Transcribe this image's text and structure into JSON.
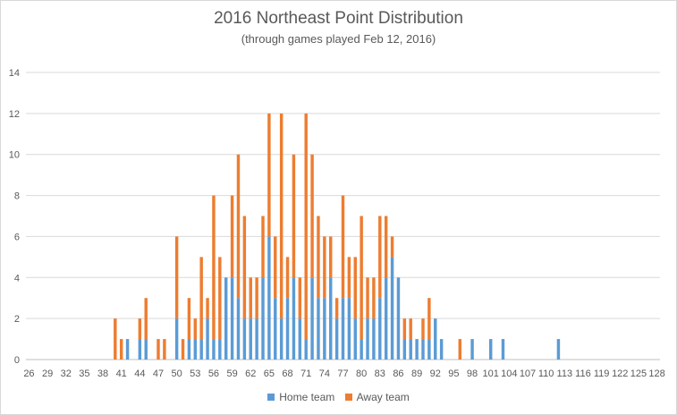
{
  "chart_data": {
    "type": "bar",
    "stacked": true,
    "title": "2016 Northeast Point Distribution",
    "subtitle": "(through games played Feb 12, 2016)",
    "xlabel": "",
    "ylabel": "",
    "ylim": [
      0,
      14
    ],
    "yticks": [
      0,
      2,
      4,
      6,
      8,
      10,
      12,
      14
    ],
    "x": [
      26,
      27,
      28,
      29,
      30,
      31,
      32,
      33,
      34,
      35,
      36,
      37,
      38,
      39,
      40,
      41,
      42,
      43,
      44,
      45,
      46,
      47,
      48,
      49,
      50,
      51,
      52,
      53,
      54,
      55,
      56,
      57,
      58,
      59,
      60,
      61,
      62,
      63,
      64,
      65,
      66,
      67,
      68,
      69,
      70,
      71,
      72,
      73,
      74,
      75,
      76,
      77,
      78,
      79,
      80,
      81,
      82,
      83,
      84,
      85,
      86,
      87,
      88,
      89,
      90,
      91,
      92,
      93,
      94,
      95,
      96,
      97,
      98,
      99,
      100,
      101,
      102,
      103,
      104,
      105,
      106,
      107,
      108,
      109,
      110,
      111,
      112,
      113,
      114,
      115,
      116,
      117,
      118,
      119,
      120,
      121,
      122,
      123,
      124,
      125,
      126,
      127,
      128
    ],
    "xticks": [
      26,
      29,
      32,
      35,
      38,
      41,
      44,
      47,
      50,
      53,
      56,
      59,
      62,
      65,
      68,
      71,
      74,
      77,
      80,
      83,
      86,
      89,
      92,
      95,
      98,
      101,
      104,
      107,
      110,
      113,
      116,
      119,
      122,
      125,
      128
    ],
    "grid": true,
    "legend_position": "bottom",
    "series": [
      {
        "name": "Home team",
        "color": "#5b9bd5",
        "values": [
          0,
          0,
          0,
          0,
          0,
          0,
          0,
          0,
          0,
          0,
          0,
          0,
          0,
          0,
          0,
          0,
          1,
          0,
          1,
          1,
          0,
          0,
          0,
          0,
          2,
          0,
          1,
          1,
          1,
          2,
          1,
          1,
          4,
          4,
          3,
          2,
          2,
          2,
          4,
          6,
          3,
          2,
          3,
          4,
          2,
          1,
          4,
          3,
          3,
          4,
          2,
          3,
          3,
          2,
          1,
          2,
          2,
          3,
          4,
          5,
          4,
          1,
          1,
          1,
          1,
          1,
          2,
          1,
          0,
          0,
          0,
          0,
          1,
          0,
          0,
          1,
          0,
          1,
          0,
          0,
          0,
          0,
          0,
          0,
          0,
          0,
          1,
          0,
          0,
          0,
          0,
          0,
          0,
          0,
          0,
          0,
          0,
          0,
          0,
          0,
          0,
          0,
          0
        ]
      },
      {
        "name": "Away team",
        "color": "#ed7d31",
        "values": [
          0,
          0,
          0,
          0,
          0,
          0,
          0,
          0,
          0,
          0,
          0,
          0,
          0,
          0,
          2,
          1,
          0,
          0,
          1,
          2,
          0,
          1,
          1,
          0,
          4,
          1,
          2,
          1,
          4,
          1,
          7,
          4,
          0,
          4,
          7,
          5,
          2,
          2,
          3,
          6,
          3,
          10,
          2,
          6,
          2,
          11,
          6,
          4,
          3,
          2,
          1,
          5,
          2,
          3,
          6,
          2,
          2,
          4,
          3,
          1,
          0,
          1,
          1,
          0,
          1,
          2,
          0,
          0,
          0,
          0,
          1,
          0,
          0,
          0,
          0,
          0,
          0,
          0,
          0,
          0,
          0,
          0,
          0,
          0,
          0,
          0,
          0,
          0,
          0,
          0,
          0,
          0,
          0,
          0,
          0,
          0,
          0,
          0,
          0,
          0,
          0,
          0,
          0
        ]
      }
    ]
  }
}
